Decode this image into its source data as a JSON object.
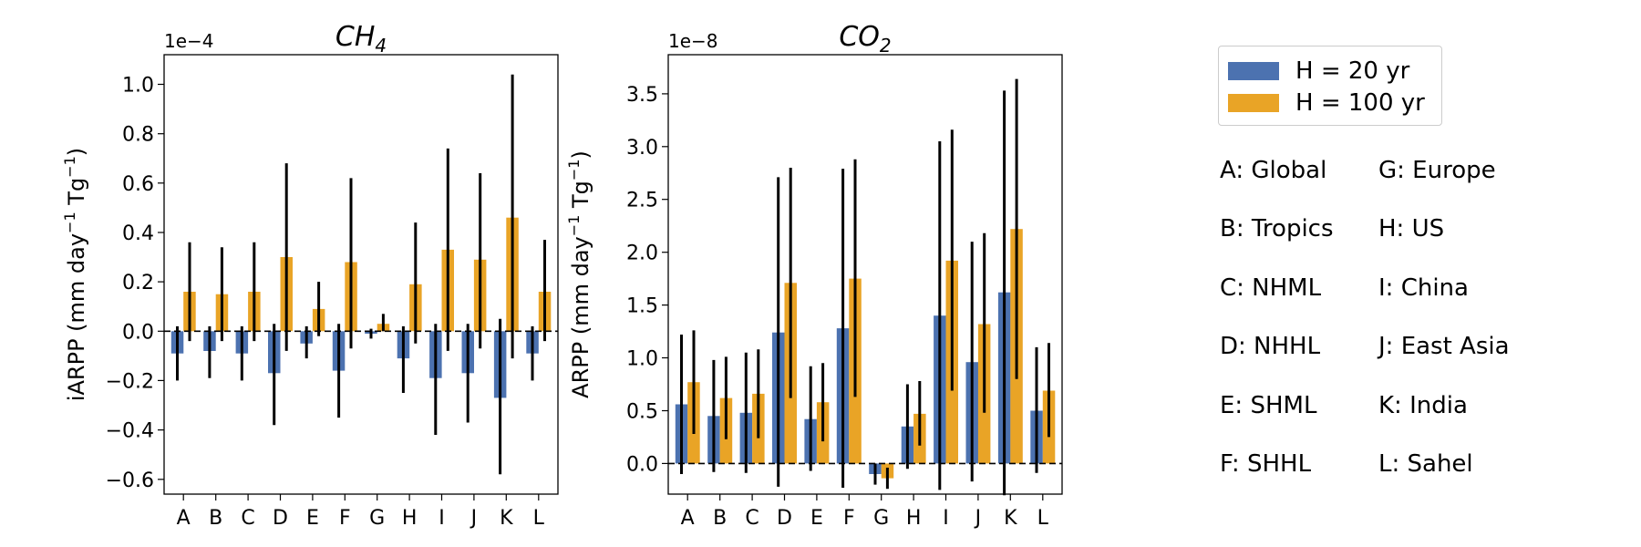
{
  "colors": {
    "h20": "#4c72b0",
    "h100": "#e9a426",
    "error": "#000000"
  },
  "legend": [
    {
      "label": "H = 20 yr",
      "color": "#4c72b0"
    },
    {
      "label": "H = 100 yr",
      "color": "#e9a426"
    }
  ],
  "regions": [
    {
      "label": "A: Global"
    },
    {
      "label": "B: Tropics"
    },
    {
      "label": "C: NHML"
    },
    {
      "label": "D: NHHL"
    },
    {
      "label": "E: SHML"
    },
    {
      "label": "F: SHHL"
    },
    {
      "label": "G: Europe"
    },
    {
      "label": "H: US"
    },
    {
      "label": "I: China"
    },
    {
      "label": "J: East Asia"
    },
    {
      "label": "K: India"
    },
    {
      "label": "L: Sahel"
    }
  ],
  "chart_data": [
    {
      "type": "bar",
      "title": "CH",
      "title_sub": "4",
      "ylabel": "iARPP (mm day",
      "ylabel_sup1": "−1",
      "ylabel_mid": " Tg",
      "ylabel_sup2": "−1",
      "ylabel_end": ")",
      "offset_text": "1e−4",
      "categories": [
        "A",
        "B",
        "C",
        "D",
        "E",
        "F",
        "G",
        "H",
        "I",
        "J",
        "K",
        "L"
      ],
      "ylim": [
        -0.66,
        1.12
      ],
      "yticks": [
        -0.6,
        -0.4,
        -0.2,
        0.0,
        0.2,
        0.4,
        0.6,
        0.8,
        1.0
      ],
      "ytick_labels": [
        "−0.6",
        "−0.4",
        "−0.2",
        "0.0",
        "0.2",
        "0.4",
        "0.6",
        "0.8",
        "1.0"
      ],
      "zero_line": "dashed",
      "series": [
        {
          "name": "H = 20 yr",
          "values": [
            -0.09,
            -0.08,
            -0.09,
            -0.17,
            -0.05,
            -0.16,
            -0.01,
            -0.11,
            -0.19,
            -0.17,
            -0.27,
            -0.09
          ],
          "error_low": [
            -0.2,
            -0.19,
            -0.2,
            -0.38,
            -0.11,
            -0.35,
            -0.03,
            -0.25,
            -0.42,
            -0.37,
            -0.58,
            -0.2
          ],
          "error_high": [
            0.02,
            0.02,
            0.02,
            0.03,
            0.02,
            0.03,
            0.01,
            0.02,
            0.03,
            0.03,
            0.05,
            0.02
          ]
        },
        {
          "name": "H = 100 yr",
          "values": [
            0.16,
            0.15,
            0.16,
            0.3,
            0.09,
            0.28,
            0.03,
            0.19,
            0.33,
            0.29,
            0.46,
            0.16
          ],
          "error_low": [
            -0.04,
            -0.04,
            -0.04,
            -0.08,
            -0.02,
            -0.07,
            0.0,
            -0.05,
            -0.08,
            -0.07,
            -0.11,
            -0.04
          ],
          "error_high": [
            0.36,
            0.34,
            0.36,
            0.68,
            0.2,
            0.62,
            0.07,
            0.44,
            0.74,
            0.64,
            1.04,
            0.37
          ]
        }
      ]
    },
    {
      "type": "bar",
      "title": "CO",
      "title_sub": "2",
      "ylabel": "ARPP (mm day",
      "ylabel_sup1": "−1",
      "ylabel_mid": " Tg",
      "ylabel_sup2": "−1",
      "ylabel_end": ")",
      "offset_text": "1e−8",
      "categories": [
        "A",
        "B",
        "C",
        "D",
        "E",
        "F",
        "G",
        "H",
        "I",
        "J",
        "K",
        "L"
      ],
      "ylim": [
        -0.29,
        3.87
      ],
      "yticks": [
        0.0,
        0.5,
        1.0,
        1.5,
        2.0,
        2.5,
        3.0,
        3.5
      ],
      "ytick_labels": [
        "0.0",
        "0.5",
        "1.0",
        "1.5",
        "2.0",
        "2.5",
        "3.0",
        "3.5"
      ],
      "zero_line": "dashed",
      "series": [
        {
          "name": "H = 20 yr",
          "values": [
            0.56,
            0.45,
            0.48,
            1.24,
            0.42,
            1.28,
            -0.1,
            0.35,
            1.4,
            0.96,
            1.62,
            0.5
          ],
          "error_low": [
            -0.1,
            -0.08,
            -0.09,
            -0.22,
            -0.07,
            -0.23,
            -0.2,
            -0.05,
            -0.25,
            -0.17,
            -0.3,
            -0.09
          ],
          "error_high": [
            1.22,
            0.98,
            1.05,
            2.71,
            0.92,
            2.79,
            0.0,
            0.75,
            3.05,
            2.1,
            3.53,
            1.1
          ]
        },
        {
          "name": "H = 100 yr",
          "values": [
            0.77,
            0.62,
            0.66,
            1.71,
            0.58,
            1.75,
            -0.14,
            0.47,
            1.92,
            1.32,
            2.22,
            0.69
          ],
          "error_low": [
            0.28,
            0.23,
            0.24,
            0.62,
            0.21,
            0.63,
            -0.24,
            0.17,
            0.69,
            0.48,
            0.8,
            0.25
          ],
          "error_high": [
            1.26,
            1.01,
            1.08,
            2.8,
            0.95,
            2.88,
            -0.04,
            0.78,
            3.16,
            2.18,
            3.64,
            1.14
          ]
        }
      ]
    }
  ]
}
